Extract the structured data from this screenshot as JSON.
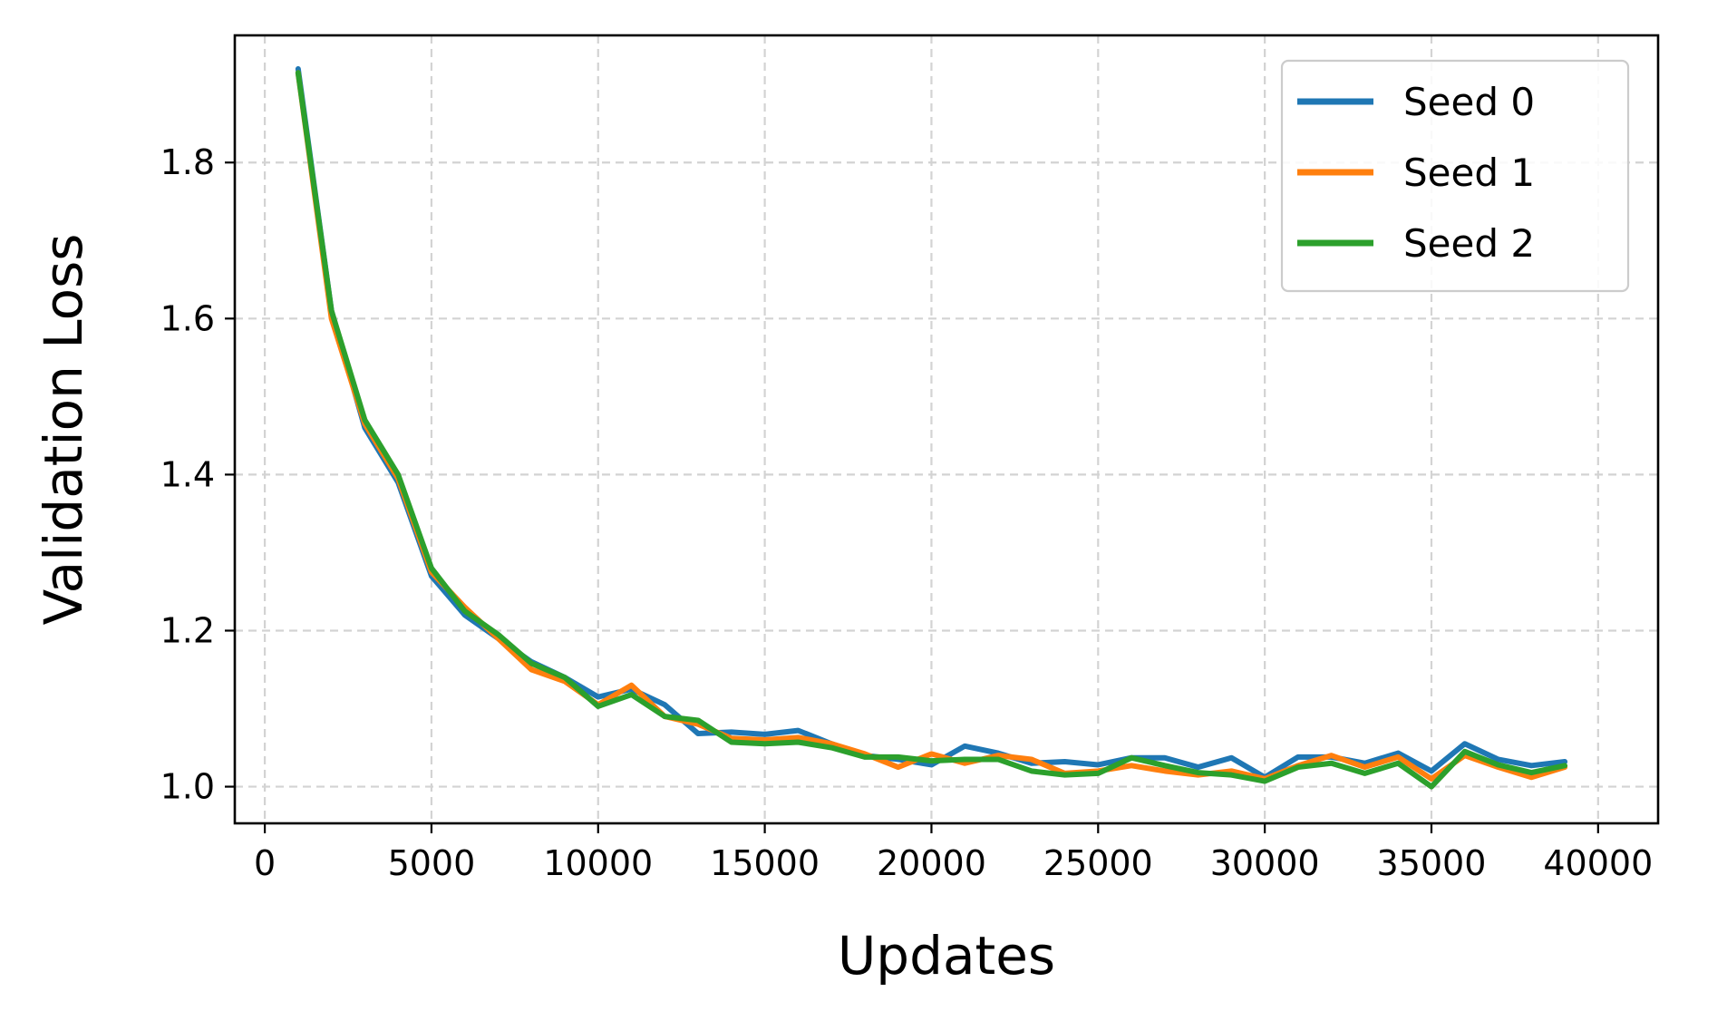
{
  "chart_data": {
    "type": "line",
    "title": "",
    "xlabel": "Updates",
    "ylabel": "Validation Loss",
    "xlim": [
      -900,
      41800
    ],
    "ylim": [
      0.953,
      1.963
    ],
    "xticks": [
      0,
      5000,
      10000,
      15000,
      20000,
      25000,
      30000,
      35000,
      40000
    ],
    "xtick_labels": [
      "0",
      "5000",
      "10000",
      "15000",
      "20000",
      "25000",
      "30000",
      "35000",
      "40000"
    ],
    "yticks": [
      1.0,
      1.2,
      1.4,
      1.6,
      1.8
    ],
    "ytick_labels": [
      "1.0",
      "1.2",
      "1.4",
      "1.6",
      "1.8"
    ],
    "grid": true,
    "legend_position": "top-right",
    "x": [
      1000,
      2000,
      3000,
      4000,
      5000,
      6000,
      7000,
      8000,
      9000,
      10000,
      11000,
      12000,
      13000,
      14000,
      15000,
      16000,
      17000,
      18000,
      19000,
      20000,
      21000,
      22000,
      23000,
      24000,
      25000,
      26000,
      27000,
      28000,
      29000,
      30000,
      31000,
      32000,
      33000,
      34000,
      35000,
      36000,
      37000,
      38000,
      39000
    ],
    "series": [
      {
        "name": "Seed 0",
        "color": "#1f77b4",
        "values": [
          1.92,
          1.61,
          1.46,
          1.39,
          1.27,
          1.22,
          1.19,
          1.16,
          1.14,
          1.115,
          1.125,
          1.105,
          1.068,
          1.07,
          1.067,
          1.072,
          1.055,
          1.04,
          1.035,
          1.028,
          1.052,
          1.043,
          1.03,
          1.032,
          1.028,
          1.037,
          1.037,
          1.025,
          1.037,
          1.012,
          1.038,
          1.038,
          1.03,
          1.043,
          1.02,
          1.055,
          1.035,
          1.027,
          1.032
        ]
      },
      {
        "name": "Seed 1",
        "color": "#ff7f0e",
        "values": [
          1.915,
          1.6,
          1.465,
          1.395,
          1.275,
          1.23,
          1.19,
          1.15,
          1.135,
          1.105,
          1.13,
          1.09,
          1.08,
          1.062,
          1.06,
          1.063,
          1.055,
          1.042,
          1.025,
          1.042,
          1.03,
          1.04,
          1.035,
          1.017,
          1.02,
          1.027,
          1.02,
          1.015,
          1.02,
          1.01,
          1.027,
          1.04,
          1.025,
          1.038,
          1.01,
          1.04,
          1.025,
          1.012,
          1.025
        ]
      },
      {
        "name": "Seed 2",
        "color": "#2ca02c",
        "values": [
          1.915,
          1.61,
          1.47,
          1.4,
          1.28,
          1.225,
          1.195,
          1.158,
          1.14,
          1.103,
          1.118,
          1.09,
          1.085,
          1.057,
          1.055,
          1.057,
          1.05,
          1.038,
          1.038,
          1.033,
          1.035,
          1.035,
          1.02,
          1.015,
          1.017,
          1.037,
          1.027,
          1.018,
          1.015,
          1.007,
          1.025,
          1.03,
          1.017,
          1.03,
          1.0,
          1.045,
          1.028,
          1.018,
          1.027
        ]
      }
    ]
  }
}
